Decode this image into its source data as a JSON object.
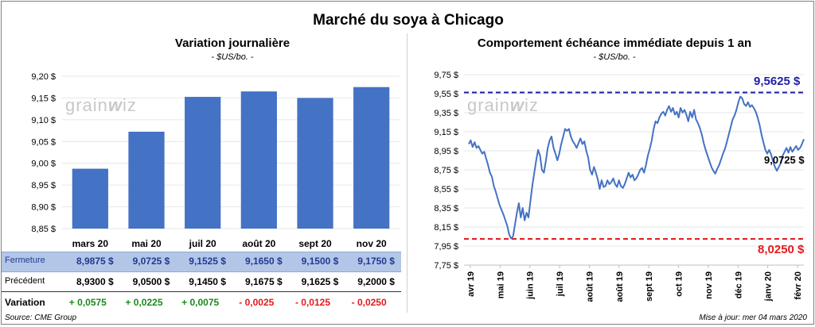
{
  "title": "Marché du soya à Chicago",
  "left_chart": {
    "title": "Variation  journalière",
    "unit": "- $US/bo. -"
  },
  "right_chart": {
    "title": "Comportement  échéance immédiate depuis 1 an",
    "unit": "- $US/bo. -",
    "max_label": "9,5625 $",
    "min_label": "8,0250 $",
    "last_label": "9,0725 $"
  },
  "watermark": {
    "left": "grain",
    "right": "iz"
  },
  "table": {
    "rows": [
      {
        "label": "Fermeture",
        "values": [
          "8,9875  $",
          "9,0725  $",
          "9,1525  $",
          "9,1650  $",
          "9,1500  $",
          "9,1750  $"
        ]
      },
      {
        "label": "Précédent",
        "values": [
          "8,9300  $",
          "9,0500  $",
          "9,1450  $",
          "9,1675  $",
          "9,1625  $",
          "9,2000  $"
        ]
      },
      {
        "label": "Variation",
        "values": [
          "+ 0,0575",
          "+ 0,0225",
          "+ 0,0075",
          "- 0,0025",
          "- 0,0125",
          "- 0,0250"
        ]
      }
    ],
    "colors": {
      "positive": "#1a8a1a",
      "negative": "#e31a1c",
      "header_bg": "#b4c6e7",
      "header_text": "#1f3a93"
    }
  },
  "footer": {
    "source": "Source: CME Group",
    "update": "Mise à jour: mer 04 mars 2020"
  },
  "chart_data": [
    {
      "type": "bar",
      "categories": [
        "mars 20",
        "mai 20",
        "juil 20",
        "août 20",
        "sept 20",
        "nov 20"
      ],
      "values": [
        8.9875,
        9.0725,
        9.1525,
        9.165,
        9.15,
        9.175
      ],
      "ylim": [
        8.85,
        9.2
      ],
      "yticks": [
        8.85,
        8.9,
        8.95,
        9.0,
        9.05,
        9.1,
        9.15,
        9.2
      ],
      "ytick_labels": [
        "8,85 $",
        "8,90 $",
        "8,95 $",
        "9,00 $",
        "9,05 $",
        "9,10 $",
        "9,15 $",
        "9,20 $"
      ],
      "color": "#4472c4"
    },
    {
      "type": "line",
      "x_labels": [
        "avr 19",
        "mai 19",
        "juin 19",
        "juil 19",
        "août 19",
        "août 19",
        "sept 19",
        "oct 19",
        "nov 19",
        "déc 19",
        "janv 20",
        "févr 20"
      ],
      "ylim": [
        7.75,
        9.75
      ],
      "yticks": [
        7.75,
        7.95,
        8.15,
        8.35,
        8.55,
        8.75,
        8.95,
        9.15,
        9.35,
        9.55,
        9.75
      ],
      "ytick_labels": [
        "7,75 $",
        "7,95 $",
        "8,15 $",
        "8,35 $",
        "8,55 $",
        "8,75 $",
        "8,95 $",
        "9,15 $",
        "9,35 $",
        "9,55 $",
        "9,75 $"
      ],
      "max_line": 9.5625,
      "min_line": 8.025,
      "line_color": "#4472c4",
      "max_color": "#1f1fa6",
      "min_color": "#e31a1c",
      "values": [
        9.02,
        9.06,
        8.99,
        9.04,
        8.98,
        9.0,
        8.96,
        8.92,
        8.94,
        8.87,
        8.8,
        8.72,
        8.68,
        8.58,
        8.52,
        8.45,
        8.38,
        8.33,
        8.28,
        8.22,
        8.16,
        8.07,
        8.03,
        8.05,
        8.18,
        8.3,
        8.4,
        8.25,
        8.35,
        8.22,
        8.3,
        8.25,
        8.42,
        8.58,
        8.72,
        8.85,
        8.96,
        8.9,
        8.75,
        8.72,
        8.84,
        8.98,
        9.06,
        9.1,
        8.98,
        8.92,
        8.85,
        8.92,
        9.02,
        9.1,
        9.18,
        9.16,
        9.18,
        9.1,
        9.05,
        9.02,
        8.98,
        9.03,
        9.08,
        9.02,
        9.05,
        8.95,
        8.88,
        8.75,
        8.7,
        8.78,
        8.72,
        8.65,
        8.55,
        8.64,
        8.57,
        8.58,
        8.64,
        8.6,
        8.62,
        8.66,
        8.6,
        8.57,
        8.64,
        8.58,
        8.56,
        8.6,
        8.66,
        8.72,
        8.67,
        8.7,
        8.64,
        8.66,
        8.7,
        8.75,
        8.77,
        8.72,
        8.8,
        8.9,
        8.97,
        9.06,
        9.18,
        9.26,
        9.24,
        9.3,
        9.34,
        9.36,
        9.32,
        9.38,
        9.42,
        9.36,
        9.4,
        9.33,
        9.36,
        9.3,
        9.4,
        9.35,
        9.38,
        9.33,
        9.26,
        9.36,
        9.3,
        9.38,
        9.28,
        9.24,
        9.19,
        9.12,
        9.03,
        8.96,
        8.9,
        8.84,
        8.78,
        8.74,
        8.71,
        8.76,
        8.8,
        8.86,
        8.92,
        8.97,
        9.04,
        9.12,
        9.2,
        9.28,
        9.32,
        9.38,
        9.46,
        9.52,
        9.5,
        9.44,
        9.42,
        9.46,
        9.41,
        9.43,
        9.4,
        9.36,
        9.3,
        9.22,
        9.12,
        9.04,
        8.96,
        8.92,
        8.96,
        8.91,
        8.84,
        8.78,
        8.74,
        8.78,
        8.82,
        8.9,
        8.94,
        8.98,
        8.93,
        8.99,
        8.94,
        8.97,
        9.0,
        8.96,
        8.98,
        9.02,
        9.0725
      ]
    }
  ]
}
